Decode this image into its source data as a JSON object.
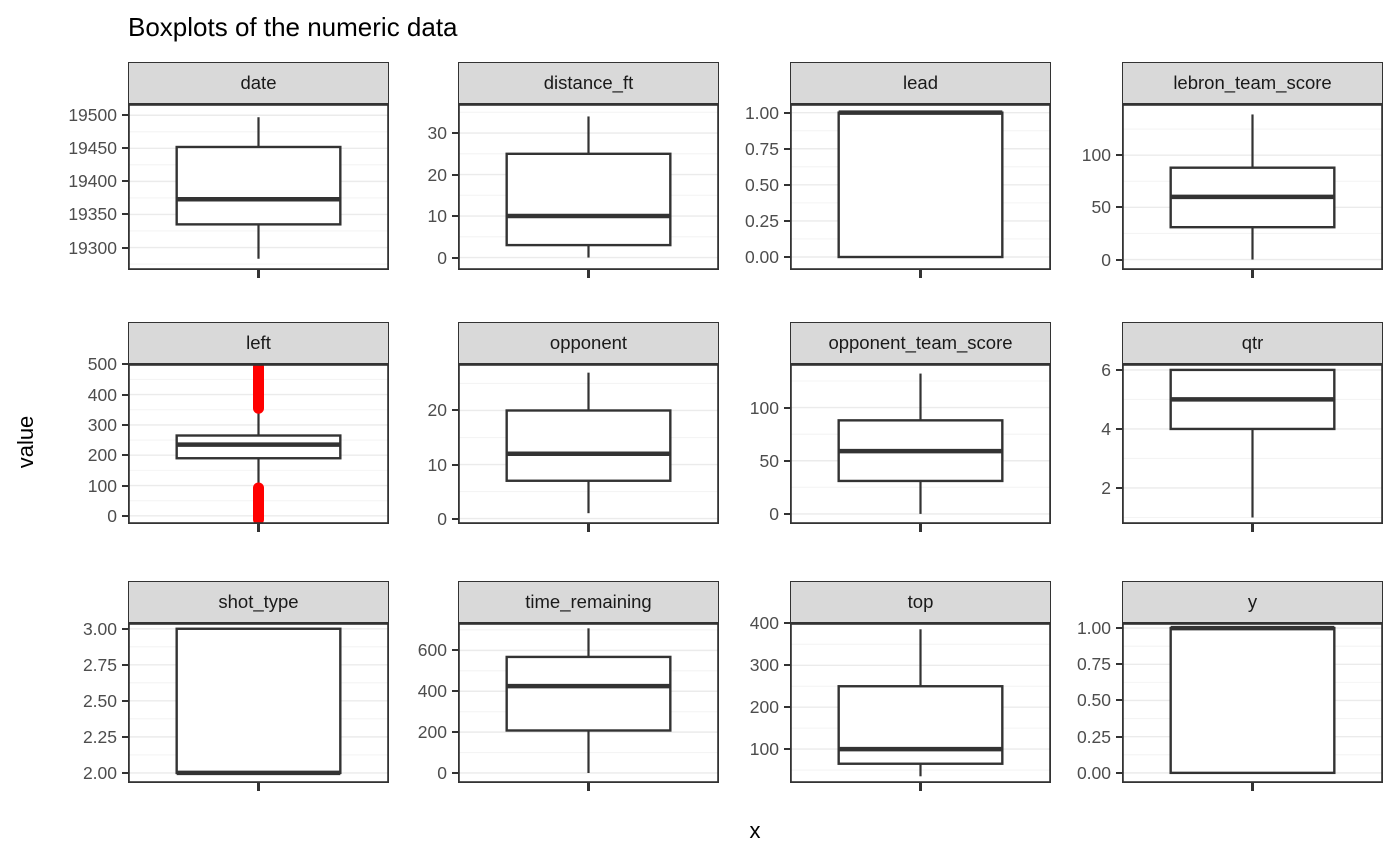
{
  "title": "Boxplots of the numeric data",
  "chart_data": {
    "type": "boxplot",
    "title": "Boxplots of the numeric data",
    "x_label": "x",
    "y_label": "value",
    "layout_hint": "facet grid 3 rows x 4 cols, free y scales, one boxplot per facet, grid on, no legend",
    "box_color": "#333333",
    "box_fill": "#ffffff",
    "outlier_color": "#FF0000",
    "strip_bg": "#D9D9D9",
    "grid_major_color": "#EBEBEB",
    "grid_minor_color": "#F4F4F4",
    "tick_label_color": "#4d4d4d",
    "panels": [
      {
        "name": "date",
        "ylim": [
          19266,
          19517
        ],
        "ticks": [
          19300,
          19350,
          19400,
          19450,
          19500
        ],
        "tick_labels": [
          "19300",
          "19350",
          "19400",
          "19450",
          "19500"
        ],
        "stats": {
          "whisker_low": 19283,
          "q1": 19335,
          "median": 19373,
          "q3": 19452,
          "whisker_high": 19497
        }
      },
      {
        "name": "distance_ft",
        "ylim": [
          -3,
          37
        ],
        "ticks": [
          0,
          10,
          20,
          30
        ],
        "tick_labels": [
          "0",
          "10",
          "20",
          "30"
        ],
        "stats": {
          "whisker_low": 0,
          "q1": 3,
          "median": 10,
          "q3": 25,
          "whisker_high": 34
        }
      },
      {
        "name": "lead",
        "ylim": [
          -0.09,
          1.06
        ],
        "ticks": [
          0,
          0.25,
          0.5,
          0.75,
          1
        ],
        "tick_labels": [
          "0.00",
          "0.25",
          "0.50",
          "0.75",
          "1.00"
        ],
        "stats": {
          "whisker_low": 0,
          "q1": 0,
          "median": 1,
          "q3": 1,
          "whisker_high": 1
        }
      },
      {
        "name": "lebron_team_score",
        "ylim": [
          -10,
          149
        ],
        "ticks": [
          0,
          50,
          100
        ],
        "tick_labels": [
          "0",
          "50",
          "100"
        ],
        "stats": {
          "whisker_low": 0,
          "q1": 31,
          "median": 60,
          "q3": 88,
          "whisker_high": 139
        }
      },
      {
        "name": "left",
        "ylim": [
          -27,
          501
        ],
        "ticks": [
          0,
          100,
          200,
          300,
          400,
          500
        ],
        "tick_labels": [
          "0",
          "100",
          "200",
          "300",
          "400",
          "500"
        ],
        "stats": {
          "whisker_low": 93,
          "q1": 190,
          "median": 235,
          "q3": 265,
          "whisker_high": 358
        },
        "outlier_ranges": [
          [
            355,
            492
          ],
          [
            -12,
            92
          ]
        ]
      },
      {
        "name": "opponent",
        "ylim": [
          -1,
          28.6
        ],
        "ticks": [
          0,
          10,
          20
        ],
        "tick_labels": [
          "0",
          "10",
          "20"
        ],
        "stats": {
          "whisker_low": 1,
          "q1": 7,
          "median": 12,
          "q3": 20,
          "whisker_high": 27
        }
      },
      {
        "name": "opponent_team_score",
        "ylim": [
          -9.5,
          141
        ],
        "ticks": [
          0,
          50,
          100
        ],
        "tick_labels": [
          "0",
          "50",
          "100"
        ],
        "stats": {
          "whisker_low": 0,
          "q1": 31,
          "median": 59,
          "q3": 88,
          "whisker_high": 132
        }
      },
      {
        "name": "qtr",
        "ylim": [
          0.78,
          6.2
        ],
        "ticks": [
          2,
          4,
          6
        ],
        "tick_labels": [
          "2",
          "4",
          "6"
        ],
        "stats": {
          "whisker_low": 1,
          "q1": 4,
          "median": 5,
          "q3": 6,
          "whisker_high": 6
        }
      },
      {
        "name": "shot_type",
        "ylim": [
          1.93,
          3.04
        ],
        "ticks": [
          2,
          2.25,
          2.5,
          2.75,
          3
        ],
        "tick_labels": [
          "2.00",
          "2.25",
          "2.50",
          "2.75",
          "3.00"
        ],
        "stats": {
          "whisker_low": 2,
          "q1": 2,
          "median": 2,
          "q3": 3,
          "whisker_high": 3
        }
      },
      {
        "name": "time_remaining",
        "ylim": [
          -49,
          734
        ],
        "ticks": [
          0,
          200,
          400,
          600
        ],
        "tick_labels": [
          "0",
          "200",
          "400",
          "600"
        ],
        "stats": {
          "whisker_low": 0,
          "q1": 208,
          "median": 425,
          "q3": 568,
          "whisker_high": 708
        }
      },
      {
        "name": "top",
        "ylim": [
          19,
          401
        ],
        "ticks": [
          100,
          200,
          300,
          400
        ],
        "tick_labels": [
          "100",
          "200",
          "300",
          "400"
        ],
        "stats": {
          "whisker_low": 35,
          "q1": 65,
          "median": 100,
          "q3": 250,
          "whisker_high": 386
        }
      },
      {
        "name": "y",
        "ylim": [
          -0.07,
          1.035
        ],
        "ticks": [
          0,
          0.25,
          0.5,
          0.75,
          1
        ],
        "tick_labels": [
          "0.00",
          "0.25",
          "0.50",
          "0.75",
          "1.00"
        ],
        "stats": {
          "whisker_low": 0,
          "q1": 0,
          "median": 1,
          "q3": 1,
          "whisker_high": 1
        }
      }
    ]
  }
}
